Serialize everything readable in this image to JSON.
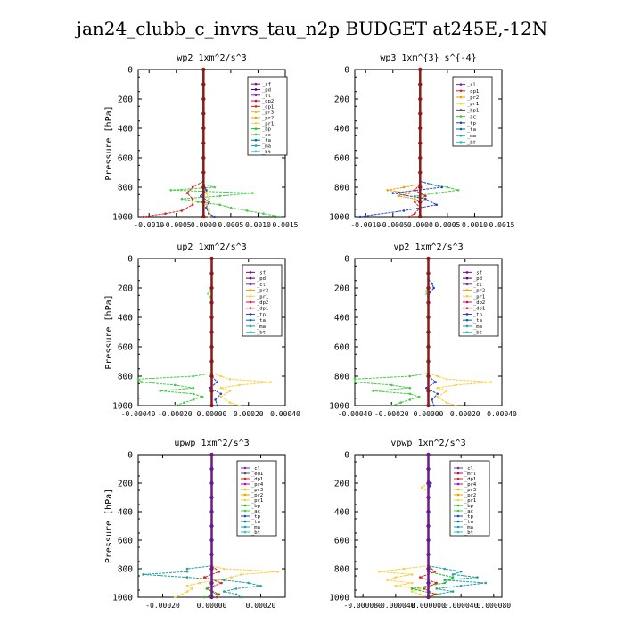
{
  "title": "jan24_clubb_c_invrs_tau_n2p  BUDGET at245E,-12N",
  "colors": {
    "_sf": "#8b008b",
    "_pd": "#4b0082",
    "_cl": "#7b2ea0",
    "_dp2": "#cc1144",
    "_dp1": "#dd2222",
    "_pr3": "#e0c000",
    "_pr2": "#f0a000",
    "_pr1": "#f8d040",
    "_bp": "#22bb22",
    "_ac": "#44cc44",
    "_tp": "#2244cc",
    "_ta": "#0066aa",
    "_ma": "#20a0a0",
    "_bt": "#22cccc",
    "_mfl": "#aa1155",
    "_pr4": "#c000c0",
    "_dp1r": "#ee1111"
  },
  "chart_data": [
    {
      "type": "line",
      "title": "wp2  1xm^2/s^3",
      "ylabel": "Pressure [hPa]",
      "xlim": [
        -0.0012,
        0.0015
      ],
      "ylim": [
        1000,
        0
      ],
      "xticks": [
        "-0.0010",
        "-0.0005",
        "0.0000",
        "0.0005",
        "0.0010",
        "0.0015"
      ],
      "xtick_values": [
        -0.001,
        -0.0005,
        0,
        0.0005,
        0.001,
        0.0015
      ],
      "yticks": [
        "0",
        "200",
        "400",
        "600",
        "800",
        "1000"
      ],
      "legend": [
        "_sf",
        "_pd",
        "_cl",
        "_dp2",
        "_dp1",
        "_pr3",
        "_pr2",
        "_pr1",
        "_bp",
        "_ac",
        "_ta",
        "_ma",
        "_bt"
      ],
      "series": [
        {
          "name": "_ac",
          "color": "#44cc44",
          "p": [
            780,
            800,
            820,
            840,
            860,
            880,
            900,
            920,
            940,
            960,
            980,
            1000
          ],
          "v": [
            0,
            0.0002,
            -0.0006,
            0.0009,
            0.0003,
            -0.0004,
            -0.0001,
            0.0003,
            0.0005,
            0.0008,
            0.0011,
            0.0014
          ]
        },
        {
          "name": "_dp1",
          "color": "#dd2222",
          "p": [
            760,
            800,
            840,
            880,
            920,
            960,
            980,
            1000
          ],
          "v": [
            0,
            -0.0002,
            -0.0003,
            -0.0002,
            -0.0002,
            -0.0004,
            -0.0007,
            -0.0011
          ]
        },
        {
          "name": "_tp",
          "color": "#2244cc",
          "p": [
            780,
            820,
            860,
            900,
            940,
            980,
            1000
          ],
          "v": [
            0,
            5e-05,
            -5e-05,
            0.0001,
            5e-05,
            0.0001,
            0.0002
          ]
        },
        {
          "name": "_pr1",
          "color": "#f8d040",
          "p": [
            800,
            840,
            880,
            920,
            960,
            1000
          ],
          "v": [
            0,
            5e-05,
            0.0001,
            5e-05,
            0.0001,
            0.0001
          ]
        },
        {
          "name": "_bt",
          "color": "#8b1a1a",
          "p": [
            0,
            100,
            200,
            300,
            400,
            500,
            600,
            700,
            800,
            900,
            1000
          ],
          "v": [
            0,
            0,
            0,
            0,
            0,
            0,
            0,
            0,
            0,
            0,
            0
          ]
        }
      ]
    },
    {
      "type": "line",
      "title": "wp3  1xm^{3} s^{-4}",
      "ylabel": "",
      "xlim": [
        -0.0012,
        0.0015
      ],
      "ylim": [
        1000,
        0
      ],
      "xticks": [
        "-0.0010",
        "-0.0005",
        "0.0000",
        "0.0005",
        "0.0010",
        "0.0015"
      ],
      "xtick_values": [
        -0.001,
        -0.0005,
        0,
        0.0005,
        0.001,
        0.0015
      ],
      "yticks": [
        "0",
        "200",
        "400",
        "600",
        "800",
        "1000"
      ],
      "legend": [
        "_cl",
        "_dp1",
        "_pr2",
        "_pr1",
        "_bp1",
        "_ac",
        "_tp",
        "_ta",
        "_ma",
        "_bt"
      ],
      "series": [
        {
          "name": "_ac",
          "color": "#44cc44",
          "p": [
            760,
            780,
            800,
            820,
            840,
            860,
            880,
            900
          ],
          "v": [
            0,
            0.0002,
            0.0005,
            0.0007,
            0.0003,
            -0.0001,
            0.0001,
            0
          ]
        },
        {
          "name": "_pr2",
          "color": "#f0a000",
          "p": [
            780,
            800,
            820,
            840,
            860,
            880,
            900
          ],
          "v": [
            0,
            -0.0003,
            -0.0006,
            -0.0002,
            -0.0004,
            -0.0001,
            0
          ]
        },
        {
          "name": "_tp",
          "color": "#2244cc",
          "p": [
            760,
            800,
            840,
            880,
            920,
            960,
            1000
          ],
          "v": [
            0,
            0.0004,
            -0.0005,
            0.0001,
            0.0003,
            -0.0003,
            -0.0011
          ]
        },
        {
          "name": "_dp1",
          "color": "#dd2222",
          "p": [
            780,
            820,
            860,
            900,
            940,
            980,
            1000
          ],
          "v": [
            0,
            -0.0001,
            0.0001,
            -0.0001,
            0,
            -0.0001,
            -0.0002
          ]
        },
        {
          "name": "_bt",
          "color": "#8b1a1a",
          "p": [
            0,
            100,
            200,
            300,
            400,
            500,
            600,
            700,
            800,
            900,
            1000
          ],
          "v": [
            0,
            0,
            0,
            0,
            0,
            0,
            0,
            0,
            0,
            0,
            0
          ]
        }
      ]
    },
    {
      "type": "line",
      "title": "up2  1xm^2/s^3",
      "ylabel": "Pressure [hPa]",
      "xlim": [
        -0.0004,
        0.0004
      ],
      "ylim": [
        1000,
        0
      ],
      "xticks": [
        "-0.00040",
        "-0.00020",
        "0.00000",
        "0.00020",
        "0.00040"
      ],
      "xtick_values": [
        -0.0004,
        -0.0002,
        0,
        0.0002,
        0.0004
      ],
      "yticks": [
        "0",
        "200",
        "400",
        "600",
        "800",
        "1000"
      ],
      "legend": [
        "_sf",
        "_pd",
        "_cl",
        "_pr2",
        "_pr1",
        "_dp2",
        "_dp1",
        "_tp",
        "_ta",
        "_ma",
        "_bt"
      ],
      "series": [
        {
          "name": "_pr1",
          "color": "#f8d040",
          "p": [
            780,
            800,
            820,
            840,
            860,
            880,
            900,
            940,
            980,
            1000
          ],
          "v": [
            0,
            5e-05,
            0.0001,
            0.00032,
            0.00015,
            5e-05,
            0.0001,
            5e-05,
            0.0001,
            0.00015
          ]
        },
        {
          "name": "_dp1",
          "color": "#44cc44",
          "p": [
            780,
            800,
            820,
            840,
            860,
            880,
            900,
            920,
            940,
            960,
            980,
            1000
          ],
          "v": [
            0,
            -0.0001,
            -0.0004,
            -0.00038,
            -0.0002,
            -0.0001,
            -0.00028,
            -0.0001,
            -5e-05,
            -0.0001,
            -0.00015,
            -0.0002
          ]
        },
        {
          "name": "_tp",
          "color": "#2244cc",
          "p": [
            800,
            840,
            880,
            920,
            960,
            1000
          ],
          "v": [
            0,
            3e-05,
            -1e-05,
            5e-05,
            2e-05,
            3e-05
          ]
        },
        {
          "name": "_ac",
          "color": "#88dd66",
          "p": [
            200,
            220,
            240,
            260,
            280
          ],
          "v": [
            0,
            -1e-05,
            -2e-05,
            -1e-05,
            0
          ]
        },
        {
          "name": "_bt",
          "color": "#8b1a1a",
          "p": [
            0,
            100,
            200,
            300,
            400,
            500,
            600,
            700,
            800,
            900,
            1000
          ],
          "v": [
            0,
            0,
            0,
            0,
            0,
            0,
            0,
            0,
            0,
            0,
            0
          ]
        }
      ]
    },
    {
      "type": "line",
      "title": "vp2  1xm^2/s^3",
      "ylabel": "",
      "xlim": [
        -0.0004,
        0.0004
      ],
      "ylim": [
        1000,
        0
      ],
      "xticks": [
        "-0.00040",
        "-0.00020",
        "0.00000",
        "0.00020",
        "0.00040"
      ],
      "xtick_values": [
        -0.0004,
        -0.0002,
        0,
        0.0002,
        0.0004
      ],
      "yticks": [
        "0",
        "200",
        "400",
        "600",
        "800",
        "1000"
      ],
      "legend": [
        "_sf",
        "_pd",
        "_cl",
        "_pr2",
        "_pr1",
        "_dp2",
        "_dp1",
        "_tp",
        "_ta",
        "_ma",
        "_bt"
      ],
      "series": [
        {
          "name": "_pr1",
          "color": "#f8d040",
          "p": [
            780,
            800,
            820,
            840,
            860,
            880,
            900,
            940,
            980,
            1000
          ],
          "v": [
            0,
            5e-05,
            0.0001,
            0.00034,
            0.00015,
            5e-05,
            0.0001,
            5e-05,
            0.0001,
            0.00015
          ]
        },
        {
          "name": "_dp1",
          "color": "#44cc44",
          "p": [
            780,
            800,
            820,
            840,
            860,
            880,
            900,
            920,
            940,
            960,
            980,
            1000
          ],
          "v": [
            0,
            -0.0001,
            -0.0004,
            -0.0004,
            -0.0002,
            -0.0001,
            -0.0003,
            -0.0001,
            -5e-05,
            -0.0001,
            -0.00015,
            -0.0002
          ]
        },
        {
          "name": "_tp",
          "color": "#2244cc",
          "p": [
            140,
            170,
            200,
            230,
            260,
            800,
            840,
            880,
            920,
            960,
            1000
          ],
          "v": [
            0,
            2e-05,
            3e-05,
            1e-05,
            0,
            0,
            4e-05,
            -1e-05,
            5e-05,
            2e-05,
            3e-05
          ]
        },
        {
          "name": "_ac",
          "color": "#88dd66",
          "p": [
            200,
            220,
            240,
            260
          ],
          "v": [
            0,
            -1e-05,
            -1e-05,
            0
          ]
        },
        {
          "name": "_bt",
          "color": "#8b1a1a",
          "p": [
            0,
            100,
            200,
            300,
            400,
            500,
            600,
            700,
            800,
            900,
            1000
          ],
          "v": [
            0,
            0,
            0,
            0,
            0,
            0,
            0,
            0,
            0,
            0,
            0
          ]
        }
      ]
    },
    {
      "type": "line",
      "title": "upwp  1xm^2/s^3",
      "ylabel": "Pressure [hPa]",
      "xlim": [
        -0.0003,
        0.0003
      ],
      "ylim": [
        1000,
        0
      ],
      "xticks": [
        "-0.00020",
        "0.00000",
        "0.00020"
      ],
      "xtick_values": [
        -0.0002,
        0,
        0.0002
      ],
      "yticks": [
        "0",
        "200",
        "400",
        "600",
        "800",
        "1000"
      ],
      "legend": [
        "_cl",
        "_ed1",
        "_dp1",
        "_pr4",
        "_pr3",
        "_pr2",
        "_pr1",
        "_bp",
        "_ac",
        "_tp",
        "_ta",
        "_ma",
        "_bt"
      ],
      "series": [
        {
          "name": "_ta",
          "color": "#20a0a0",
          "p": [
            780,
            800,
            820,
            840,
            860,
            880,
            900,
            920,
            940,
            960,
            980,
            1000
          ],
          "v": [
            0,
            -0.0001,
            -0.0001,
            -0.00028,
            -0.0001,
            5e-05,
            0.00015,
            0.0002,
            0.0001,
            5e-05,
            0.0001,
            0.00012
          ]
        },
        {
          "name": "_pr1",
          "color": "#f8d040",
          "p": [
            780,
            800,
            820,
            840,
            860,
            880,
            900,
            920,
            940,
            960,
            980,
            1000
          ],
          "v": [
            0,
            5e-05,
            0.00027,
            0.00012,
            8e-05,
            2e-05,
            -5e-05,
            -0.0001,
            -8e-05,
            -0.0001,
            -0.00012,
            -0.00015
          ]
        },
        {
          "name": "_dp1",
          "color": "#dd2222",
          "p": [
            780,
            820,
            860,
            900,
            940,
            980,
            1000
          ],
          "v": [
            0,
            3e-05,
            -3e-05,
            4e-05,
            -2e-05,
            3e-05,
            2e-05
          ]
        },
        {
          "name": "_bp",
          "color": "#22bb22",
          "p": [
            900,
            940,
            980,
            1000
          ],
          "v": [
            0,
            -2e-05,
            2e-05,
            -3e-05
          ]
        },
        {
          "name": "_bt",
          "color": "#6a1b8a",
          "p": [
            0,
            100,
            200,
            300,
            400,
            500,
            600,
            700,
            800,
            900,
            1000
          ],
          "v": [
            0,
            0,
            0,
            0,
            0,
            0,
            0,
            0,
            0,
            0,
            0
          ]
        }
      ]
    },
    {
      "type": "line",
      "title": "vpwp  1xm^2/s^3",
      "ylabel": "",
      "xlim": [
        -9e-05,
        9e-05
      ],
      "ylim": [
        1000,
        0
      ],
      "xticks": [
        "-0.000080",
        "-0.000040",
        "0.000000",
        "0.000040",
        "0.000080"
      ],
      "xtick_values": [
        -8e-05,
        -4e-05,
        0,
        4e-05,
        8e-05
      ],
      "yticks": [
        "0",
        "200",
        "400",
        "600",
        "800",
        "1000"
      ],
      "legend": [
        "_cl",
        "_mfl",
        "_dp1",
        "_pr4",
        "_pr3",
        "_pr2",
        "_pr1",
        "_bp",
        "_ac",
        "_tp",
        "_ta",
        "_ma",
        "_bt"
      ],
      "series": [
        {
          "name": "_pr1",
          "color": "#f8d040",
          "p": [
            200,
            230,
            260,
            780,
            800,
            820,
            840,
            860,
            880,
            900,
            920,
            940,
            960,
            980,
            1000
          ],
          "v": [
            0,
            -8e-06,
            0,
            0,
            -3e-05,
            -6e-05,
            -2e-05,
            -4e-05,
            -5e-05,
            -2e-05,
            -4e-05,
            -1e-05,
            -2e-05,
            -1e-05,
            0
          ]
        },
        {
          "name": "_ta",
          "color": "#20a0a0",
          "p": [
            780,
            800,
            820,
            840,
            860,
            880,
            900,
            920,
            940,
            960,
            980,
            1000
          ],
          "v": [
            0,
            2e-05,
            4e-05,
            3e-05,
            6e-05,
            2e-05,
            7e-05,
            4e-05,
            1e-05,
            3e-05,
            1e-05,
            0
          ]
        },
        {
          "name": "_bp",
          "color": "#22bb22",
          "p": [
            820,
            860,
            900,
            940,
            980,
            1000
          ],
          "v": [
            0,
            3e-05,
            2e-05,
            -2e-05,
            1e-05,
            0
          ]
        },
        {
          "name": "_dp1",
          "color": "#dd2222",
          "p": [
            780,
            820,
            860,
            900,
            940,
            980,
            1000
          ],
          "v": [
            0,
            8e-06,
            -1e-05,
            1e-05,
            -5e-06,
            8e-06,
            0
          ]
        },
        {
          "name": "_tp",
          "color": "#2244cc",
          "p": [
            180,
            200,
            220,
            240
          ],
          "v": [
            0,
            3e-06,
            2e-06,
            0
          ]
        },
        {
          "name": "_bt",
          "color": "#6a1b8a",
          "p": [
            0,
            100,
            200,
            300,
            400,
            500,
            600,
            700,
            800,
            900,
            1000
          ],
          "v": [
            0,
            0,
            0,
            0,
            0,
            0,
            0,
            0,
            0,
            0,
            0
          ]
        }
      ]
    }
  ]
}
